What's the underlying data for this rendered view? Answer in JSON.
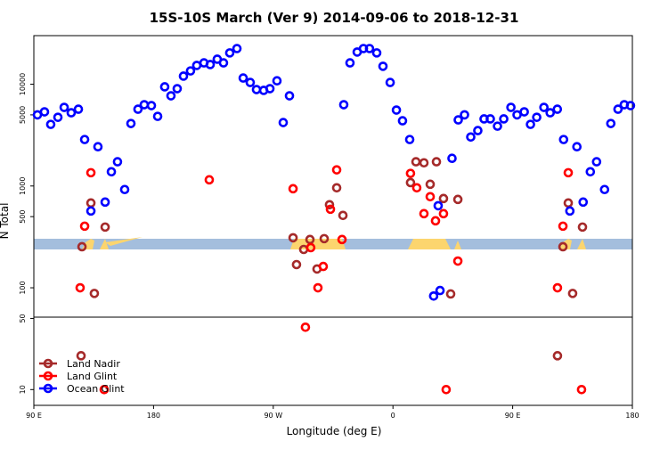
{
  "chart_data": {
    "type": "scatter",
    "title": "15S-10S March (Ver 9)   2014-09-06 to 2018-12-31",
    "x_label": "Longitude (deg E)",
    "y_label": "N Total",
    "xlim": [
      90,
      540
    ],
    "xticks": [
      {
        "value": 90,
        "label": "90 E"
      },
      {
        "value": 180,
        "label": "180"
      },
      {
        "value": 270,
        "label": "90 W"
      },
      {
        "value": 360,
        "label": "0"
      },
      {
        "value": 450,
        "label": "90 E"
      },
      {
        "value": 540,
        "label": "180"
      }
    ],
    "ylim": [
      7,
      30000
    ],
    "y_log": true,
    "yticks": [
      10,
      50,
      100,
      500,
      1000,
      5000,
      10000
    ],
    "legend": "bottom-left",
    "series": [
      {
        "name": "Land Nadir",
        "color": "#a52a2a",
        "x": [
          126.2,
          132.9,
          135.5,
          143.6,
          125.5,
          284.9,
          287.5,
          292.9,
          297.6,
          302.9,
          308.3,
          312.3,
          317.7,
          322.4,
          373.2,
          377.3,
          383.3,
          388.0,
          392.7,
          398.0,
          403.4,
          408.8,
          483.7,
          487.8,
          491.8,
          495.1,
          502.5
        ],
        "values": [
          253,
          681,
          88,
          395,
          21.5,
          310,
          169,
          238,
          298,
          153,
          304,
          655,
          960,
          514,
          1080,
          1730,
          1690,
          1040,
          1730,
          753,
          87,
          738,
          21.5,
          253,
          681,
          88,
          395
        ]
      },
      {
        "name": "Land Glint",
        "color": "#ff0000",
        "x": [
          124.8,
          132.9,
          128.2,
          142.9,
          221.9,
          284.9,
          294.2,
          303.6,
          307.6,
          298.2,
          313.0,
          317.7,
          321.7,
          373.2,
          377.9,
          383.3,
          388.0,
          392.0,
          398.0,
          400.0,
          408.8,
          483.7,
          487.8,
          491.8,
          501.8
        ],
        "values": [
          100,
          1350,
          403,
          10,
          1150,
          940,
          41,
          100,
          162,
          248,
          591,
          1440,
          298,
          1330,
          960,
          535,
          785,
          455,
          535,
          10,
          183,
          100,
          403,
          1350,
          10
        ]
      },
      {
        "name": "Ocean Glint",
        "color": "#0000ff",
        "x": [
          92.7,
          98.0,
          102.7,
          108.1,
          112.8,
          118.1,
          123.5,
          128.2,
          132.9,
          138.2,
          143.6,
          148.3,
          152.9,
          158.3,
          163.0,
          168.3,
          173.0,
          178.4,
          183.1,
          188.4,
          193.1,
          197.8,
          202.5,
          207.8,
          212.5,
          217.9,
          222.6,
          227.9,
          232.6,
          237.3,
          242.7,
          247.4,
          252.7,
          257.4,
          262.8,
          267.5,
          272.8,
          277.5,
          282.2,
          323.0,
          327.7,
          333.1,
          337.8,
          342.4,
          347.8,
          352.5,
          357.9,
          362.6,
          367.2,
          372.6,
          390.6,
          395.4,
          394.0,
          404.4,
          409.1,
          413.8,
          418.5,
          423.8,
          428.5,
          433.2,
          438.6,
          443.3,
          448.7,
          453.3,
          458.7,
          463.4,
          468.1,
          473.5,
          478.2,
          483.6,
          488.3,
          493.0,
          498.3,
          503.0,
          508.4,
          513.1,
          519.1,
          523.8,
          529.2,
          533.9,
          538.6
        ],
        "values": [
          5000,
          5350,
          4030,
          4730,
          5920,
          5240,
          5680,
          2860,
          568,
          2430,
          695,
          1380,
          1730,
          923,
          4110,
          5680,
          6290,
          6160,
          4830,
          9420,
          7690,
          9040,
          12000,
          13500,
          15300,
          16200,
          15600,
          17600,
          16200,
          20300,
          22400,
          11500,
          10400,
          8860,
          8690,
          9040,
          10800,
          4200,
          7690,
          6290,
          16200,
          20700,
          22400,
          22400,
          20300,
          15000,
          10400,
          5570,
          4370,
          2860,
          83,
          94,
          640,
          1870,
          4460,
          5000,
          3030,
          3500,
          4560,
          4560,
          3870,
          4560,
          5920,
          5000,
          5350,
          4030,
          4730,
          5920,
          5240,
          5680,
          2860,
          568,
          2430,
          695,
          1380,
          1730,
          923,
          4110,
          5680,
          6290,
          6160
        ]
      }
    ]
  }
}
